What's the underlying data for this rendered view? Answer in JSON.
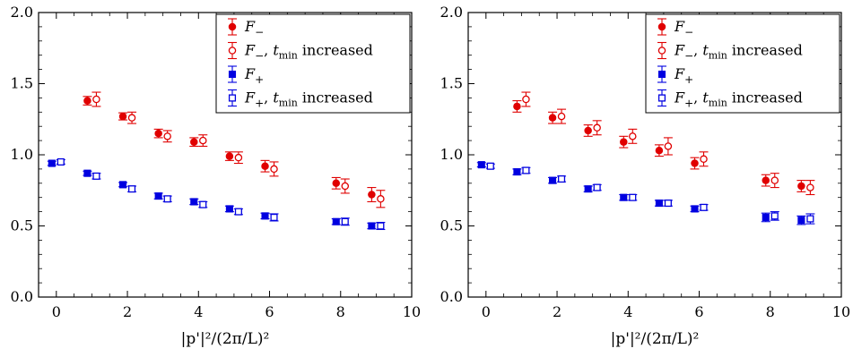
{
  "chart_data": [
    {
      "type": "scatter",
      "xlabel": "|p'|²/(2π/L)²",
      "ylabel": "",
      "xlim": [
        -0.5,
        10
      ],
      "ylim": [
        0,
        2
      ],
      "xticks": [
        "0",
        "2",
        "4",
        "6",
        "8",
        "10"
      ],
      "yticks": [
        "0.0",
        "0.5",
        "1.0",
        "1.5",
        "2.0"
      ],
      "legend_position": "top-right",
      "series": [
        {
          "name": "F−",
          "color": "#e00000",
          "marker": "circle",
          "filled": true,
          "x": [
            1,
            2,
            3,
            4,
            5,
            6,
            8,
            9
          ],
          "y": [
            1.38,
            1.27,
            1.15,
            1.09,
            0.99,
            0.92,
            0.8,
            0.72
          ],
          "err": [
            0.03,
            0.025,
            0.03,
            0.03,
            0.03,
            0.04,
            0.04,
            0.05
          ]
        },
        {
          "name": "F−,  tmin  increased",
          "color": "#e00000",
          "marker": "circle",
          "filled": false,
          "x": [
            1,
            2,
            3,
            4,
            5,
            6,
            8,
            9
          ],
          "y": [
            1.39,
            1.26,
            1.13,
            1.1,
            0.98,
            0.9,
            0.78,
            0.69
          ],
          "err": [
            0.05,
            0.04,
            0.04,
            0.04,
            0.04,
            0.05,
            0.05,
            0.06
          ]
        },
        {
          "name": "F+",
          "color": "#0000e0",
          "marker": "square",
          "filled": true,
          "x": [
            0,
            1,
            2,
            3,
            4,
            5,
            6,
            8,
            9
          ],
          "y": [
            0.94,
            0.87,
            0.79,
            0.71,
            0.67,
            0.62,
            0.57,
            0.53,
            0.5
          ],
          "err": [
            0.015,
            0.015,
            0.015,
            0.02,
            0.02,
            0.02,
            0.02,
            0.02,
            0.02
          ]
        },
        {
          "name": "F+,  tmin  increased",
          "color": "#0000e0",
          "marker": "square",
          "filled": false,
          "x": [
            0,
            1,
            2,
            3,
            4,
            5,
            6,
            8,
            9
          ],
          "y": [
            0.95,
            0.85,
            0.76,
            0.69,
            0.65,
            0.6,
            0.56,
            0.53,
            0.5
          ],
          "err": [
            0.015,
            0.02,
            0.02,
            0.02,
            0.02,
            0.02,
            0.025,
            0.025,
            0.025
          ]
        }
      ]
    },
    {
      "type": "scatter",
      "xlabel": "|p'|²/(2π/L)²",
      "ylabel": "",
      "xlim": [
        -0.5,
        10
      ],
      "ylim": [
        0,
        2
      ],
      "xticks": [
        "0",
        "2",
        "4",
        "6",
        "8",
        "10"
      ],
      "yticks": [
        "0.0",
        "0.5",
        "1.0",
        "1.5",
        "2.0"
      ],
      "legend_position": "top-right",
      "series": [
        {
          "name": "F−",
          "color": "#e00000",
          "marker": "circle",
          "filled": true,
          "x": [
            1,
            2,
            3,
            4,
            5,
            6,
            8,
            9
          ],
          "y": [
            1.34,
            1.26,
            1.17,
            1.09,
            1.03,
            0.94,
            0.82,
            0.78
          ],
          "err": [
            0.04,
            0.04,
            0.04,
            0.04,
            0.04,
            0.04,
            0.04,
            0.04
          ]
        },
        {
          "name": "F−,  tmin  increased",
          "color": "#e00000",
          "marker": "circle",
          "filled": false,
          "x": [
            1,
            2,
            3,
            4,
            5,
            6,
            8,
            9
          ],
          "y": [
            1.39,
            1.27,
            1.19,
            1.13,
            1.06,
            0.97,
            0.82,
            0.77
          ],
          "err": [
            0.05,
            0.05,
            0.05,
            0.05,
            0.06,
            0.05,
            0.05,
            0.05
          ]
        },
        {
          "name": "F+",
          "color": "#0000e0",
          "marker": "square",
          "filled": true,
          "x": [
            0,
            1,
            2,
            3,
            4,
            5,
            6,
            8,
            9
          ],
          "y": [
            0.93,
            0.88,
            0.82,
            0.76,
            0.7,
            0.66,
            0.62,
            0.56,
            0.54
          ],
          "err": [
            0.015,
            0.02,
            0.02,
            0.02,
            0.02,
            0.02,
            0.02,
            0.03,
            0.03
          ]
        },
        {
          "name": "F+,  tmin  increased",
          "color": "#0000e0",
          "marker": "square",
          "filled": false,
          "x": [
            0,
            1,
            2,
            3,
            4,
            5,
            6,
            8,
            9
          ],
          "y": [
            0.92,
            0.89,
            0.83,
            0.77,
            0.7,
            0.66,
            0.63,
            0.57,
            0.55
          ],
          "err": [
            0.015,
            0.02,
            0.02,
            0.02,
            0.02,
            0.02,
            0.02,
            0.03,
            0.035
          ]
        }
      ]
    }
  ]
}
